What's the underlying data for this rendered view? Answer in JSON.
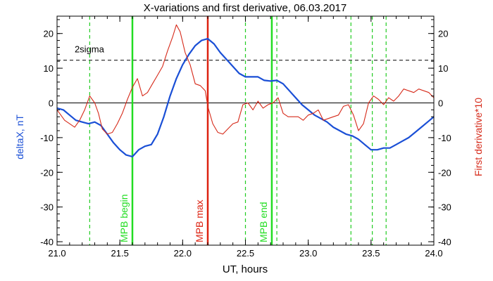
{
  "chart_data": {
    "type": "line",
    "title": "X-variations and first derivative, 06.03.2017",
    "xlabel": "UT, hours",
    "ylabel_left": "deltaX, nT",
    "ylabel_right": "First derivative*10",
    "xlim": [
      21.0,
      24.0
    ],
    "ylim": [
      -41,
      25
    ],
    "x_ticks": [
      "21.0",
      "21.5",
      "22.0",
      "22.5",
      "23.0",
      "23.5",
      "24.0"
    ],
    "x_tick_values": [
      21.0,
      21.5,
      22.0,
      22.5,
      23.0,
      23.5,
      24.0
    ],
    "y_ticks": [
      "20",
      "10",
      "0",
      "-10",
      "-20",
      "-30",
      "-40"
    ],
    "y_tick_values": [
      20,
      10,
      0,
      -10,
      -20,
      -30,
      -40
    ],
    "grid": false,
    "colors": {
      "deltaX": "#1a4fd6",
      "derivative": "#d62a1a",
      "mpb_edges": "#22dd22",
      "mpb_max": "#dd2211",
      "sigma": "#000000",
      "extrema": "#22cc22"
    },
    "sigma_level": 12.3,
    "sigma_label": "2sigma",
    "series": [
      {
        "key": "deltaX",
        "x": [
          21.0,
          21.05,
          21.1,
          21.15,
          21.2,
          21.25,
          21.3,
          21.35,
          21.4,
          21.45,
          21.5,
          21.55,
          21.6,
          21.65,
          21.7,
          21.75,
          21.8,
          21.85,
          21.9,
          21.95,
          22.0,
          22.05,
          22.1,
          22.15,
          22.2,
          22.25,
          22.3,
          22.35,
          22.4,
          22.45,
          22.5,
          22.55,
          22.6,
          22.65,
          22.7,
          22.75,
          22.8,
          22.85,
          22.9,
          22.95,
          23.0,
          23.05,
          23.1,
          23.15,
          23.2,
          23.25,
          23.3,
          23.35,
          23.4,
          23.45,
          23.5,
          23.55,
          23.6,
          23.65,
          23.7,
          23.75,
          23.8,
          23.85,
          23.9,
          23.95,
          24.0
        ],
        "y": [
          -1.5,
          -2.0,
          -3.5,
          -5.0,
          -5.5,
          -6.0,
          -5.5,
          -6.5,
          -9.0,
          -11.5,
          -13.5,
          -15.0,
          -15.5,
          -13.5,
          -12.5,
          -12.0,
          -9.0,
          -4.0,
          2.0,
          7.0,
          11.0,
          14.0,
          16.5,
          18.0,
          18.5,
          17.0,
          14.5,
          12.5,
          10.5,
          8.5,
          7.5,
          7.5,
          7.5,
          6.5,
          6.3,
          6.5,
          5.5,
          3.5,
          1.5,
          -0.5,
          -2.0,
          -3.5,
          -4.5,
          -5.5,
          -7.0,
          -8.0,
          -9.0,
          -9.5,
          -10.5,
          -12.0,
          -13.5,
          -13.5,
          -13.0,
          -13.0,
          -12.0,
          -11.0,
          -10.0,
          -8.5,
          -7.0,
          -5.5,
          -4.0
        ]
      },
      {
        "key": "derivative",
        "x": [
          21.0,
          21.03,
          21.06,
          21.1,
          21.14,
          21.18,
          21.22,
          21.26,
          21.3,
          21.33,
          21.36,
          21.4,
          21.44,
          21.48,
          21.52,
          21.56,
          21.6,
          21.64,
          21.68,
          21.72,
          21.76,
          21.8,
          21.84,
          21.88,
          21.92,
          21.95,
          21.98,
          22.02,
          22.06,
          22.1,
          22.14,
          22.18,
          22.2,
          22.24,
          22.28,
          22.32,
          22.36,
          22.4,
          22.44,
          22.48,
          22.52,
          22.56,
          22.6,
          22.64,
          22.68,
          22.72,
          22.76,
          22.8,
          22.84,
          22.88,
          22.92,
          22.96,
          23.0,
          23.04,
          23.08,
          23.12,
          23.16,
          23.2,
          23.24,
          23.28,
          23.32,
          23.36,
          23.4,
          23.44,
          23.48,
          23.52,
          23.56,
          23.6,
          23.64,
          23.68,
          23.72,
          23.76,
          23.8,
          23.84,
          23.88,
          23.92,
          23.96,
          24.0
        ],
        "y": [
          -2.0,
          -3.5,
          -5.0,
          -6.0,
          -7.0,
          -5.0,
          -2.0,
          2.0,
          0.0,
          -3.0,
          -7.5,
          -9.0,
          -8.5,
          -6.0,
          -3.0,
          1.0,
          4.5,
          7.0,
          2.0,
          3.0,
          5.5,
          8.0,
          10.5,
          15.0,
          19.0,
          22.5,
          20.5,
          14.5,
          11.0,
          5.5,
          5.0,
          3.5,
          -1.0,
          -6.0,
          -8.5,
          -9.0,
          -7.5,
          -6.0,
          -5.5,
          -0.5,
          0.0,
          -2.0,
          0.5,
          -1.5,
          -0.5,
          0.0,
          1.5,
          -3.0,
          -4.0,
          -4.0,
          -4.0,
          -5.0,
          -3.5,
          -3.0,
          -2.0,
          -5.0,
          -4.5,
          -4.0,
          -3.5,
          -1.0,
          -0.5,
          -3.5,
          -8.0,
          -6.0,
          0.0,
          2.0,
          1.0,
          -0.5,
          1.5,
          0.5,
          2.0,
          4.0,
          3.5,
          3.0,
          4.0,
          3.5,
          3.0,
          1.5
        ]
      }
    ],
    "vertical_markers": [
      {
        "x": 21.6,
        "label": "MPB begin",
        "style": "solid",
        "role": "mpb_edges"
      },
      {
        "x": 22.2,
        "label": "MPB max",
        "style": "solid",
        "role": "mpb_max"
      },
      {
        "x": 22.71,
        "label": "MPB end",
        "style": "solid",
        "role": "mpb_edges"
      }
    ],
    "dashed_markers": [
      21.26,
      22.5,
      22.75,
      23.34,
      23.51,
      23.62
    ]
  }
}
